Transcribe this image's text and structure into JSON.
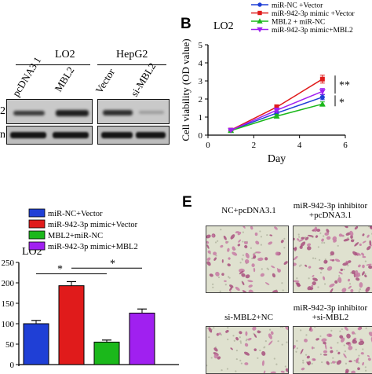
{
  "panelA": {
    "groups": [
      "LO2",
      "HepG2"
    ],
    "lanes": [
      "pcDNA3.1",
      "MBL2",
      "Vector",
      "si-MBL2"
    ],
    "rows": [
      "2",
      "n"
    ]
  },
  "panelB": {
    "letter": "B",
    "label": "LO2"
  },
  "panelD": {
    "label": "LO2"
  },
  "panelE": {
    "letter": "E",
    "captions": [
      "NC+pcDNA3.1",
      "miR-942-3p inhibitor",
      "+pcDNA3.1",
      "si-MBL2+NC",
      "miR-942-3p inhibitor",
      "+si-MBL2"
    ]
  },
  "colors": {
    "blue": "#1f3fd6",
    "red": "#e01b1b",
    "green": "#1bb81b",
    "purple": "#a020f0"
  },
  "chart_data": [
    {
      "type": "line",
      "xlabel": "Day",
      "ylabel": "Cell viability (OD value)",
      "xlim": [
        0,
        6
      ],
      "ylim": [
        0,
        5
      ],
      "xticks": [
        0,
        2,
        4,
        6
      ],
      "yticks": [
        0,
        1,
        2,
        3,
        4,
        5
      ],
      "x": [
        1,
        3,
        5
      ],
      "series": [
        {
          "name": "miR-NC +Vector",
          "color": "#1f3fd6",
          "marker": "circle",
          "values": [
            0.27,
            1.22,
            2.1
          ],
          "err": [
            0.03,
            0.12,
            0.14
          ]
        },
        {
          "name": "miR-942-3p mimic +Vector",
          "color": "#e01b1b",
          "marker": "square",
          "values": [
            0.28,
            1.55,
            3.1
          ],
          "err": [
            0.03,
            0.13,
            0.22
          ]
        },
        {
          "name": "MBL2 + miR-NC",
          "color": "#1bb81b",
          "marker": "triangle",
          "values": [
            0.25,
            1.05,
            1.72
          ],
          "err": [
            0.03,
            0.1,
            0.12
          ]
        },
        {
          "name": "miR-942-3p mimic+MBL2",
          "color": "#a020f0",
          "marker": "triangle-down",
          "values": [
            0.27,
            1.38,
            2.42
          ],
          "err": [
            0.03,
            0.12,
            0.16
          ]
        }
      ],
      "annotations": [
        "**",
        "*"
      ],
      "legend": "top"
    },
    {
      "type": "bar",
      "yticks": [
        0,
        50,
        100,
        150,
        200,
        250
      ],
      "ylim": [
        0,
        250
      ],
      "series": [
        {
          "name": "miR-NC+Vector",
          "color": "#1f3fd6",
          "value": 100,
          "err": 8
        },
        {
          "name": "miR-942-3p mimic+Vector",
          "color": "#e01b1b",
          "value": 193,
          "err": 10
        },
        {
          "name": "MBL2+miR-NC",
          "color": "#1bb81b",
          "value": 55,
          "err": 5
        },
        {
          "name": "miR-942-3p mimic+MBL2",
          "color": "#a020f0",
          "value": 126,
          "err": 10
        }
      ],
      "annotations": [
        "*",
        "*"
      ],
      "legend": "top"
    }
  ]
}
